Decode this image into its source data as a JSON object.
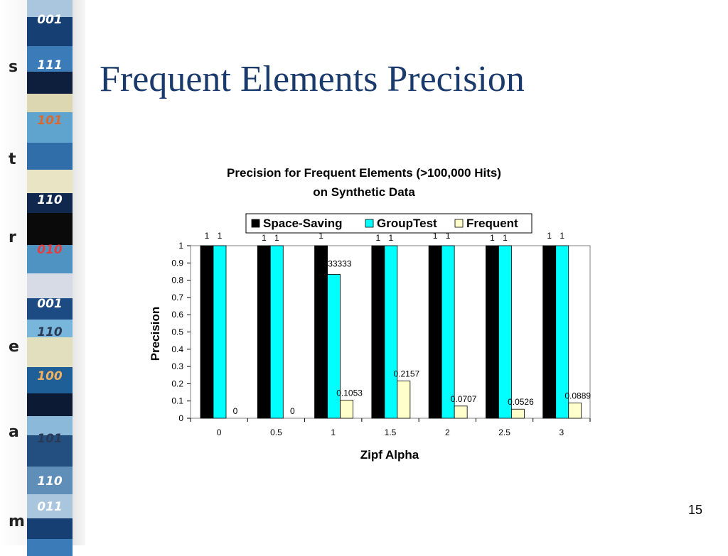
{
  "slide": {
    "title": "Frequent Elements Precision",
    "page_number": "15"
  },
  "sidebar": {
    "letters": [
      "s",
      "t",
      "r",
      "e",
      "a",
      "m"
    ],
    "binary_labels": [
      "001",
      "111",
      "101",
      "110",
      "010",
      "001",
      "110",
      "100",
      "101",
      "110",
      "011"
    ]
  },
  "chart_data": {
    "type": "bar",
    "title_line1": "Precision for Frequent Elements (>100,000 Hits)",
    "title_line2": "on Synthetic Data",
    "xlabel": "Zipf Alpha",
    "ylabel": "Precision",
    "categories": [
      "0",
      "0.5",
      "1",
      "1.5",
      "2",
      "2.5",
      "3"
    ],
    "ylim": [
      0,
      1
    ],
    "yticks": [
      "0",
      "0.1",
      "0.2",
      "0.3",
      "0.4",
      "0.5",
      "0.6",
      "0.7",
      "0.8",
      "0.9",
      "1"
    ],
    "legend_position": "top",
    "series": [
      {
        "name": "Space-Saving",
        "color": "#000000",
        "values": [
          1,
          1,
          1,
          1,
          1,
          1,
          1
        ]
      },
      {
        "name": "GroupTest",
        "color": "#00ffff",
        "values": [
          1,
          1,
          0.833333,
          1,
          1,
          1,
          1
        ]
      },
      {
        "name": "Frequent",
        "color": "#ffffcc",
        "values": [
          0,
          0,
          0.1053,
          0.2157,
          0.0707,
          0.0526,
          0.0889
        ]
      }
    ],
    "data_labels": [
      [
        "1",
        "1",
        "1",
        "1",
        "1",
        "1",
        "1"
      ],
      [
        "1",
        "1",
        "0.833333",
        "1",
        "1",
        "1",
        "1"
      ],
      [
        "0",
        "0",
        "0.1053",
        "0.2157",
        "0.0707",
        "0.0526",
        "0.0889"
      ]
    ]
  }
}
